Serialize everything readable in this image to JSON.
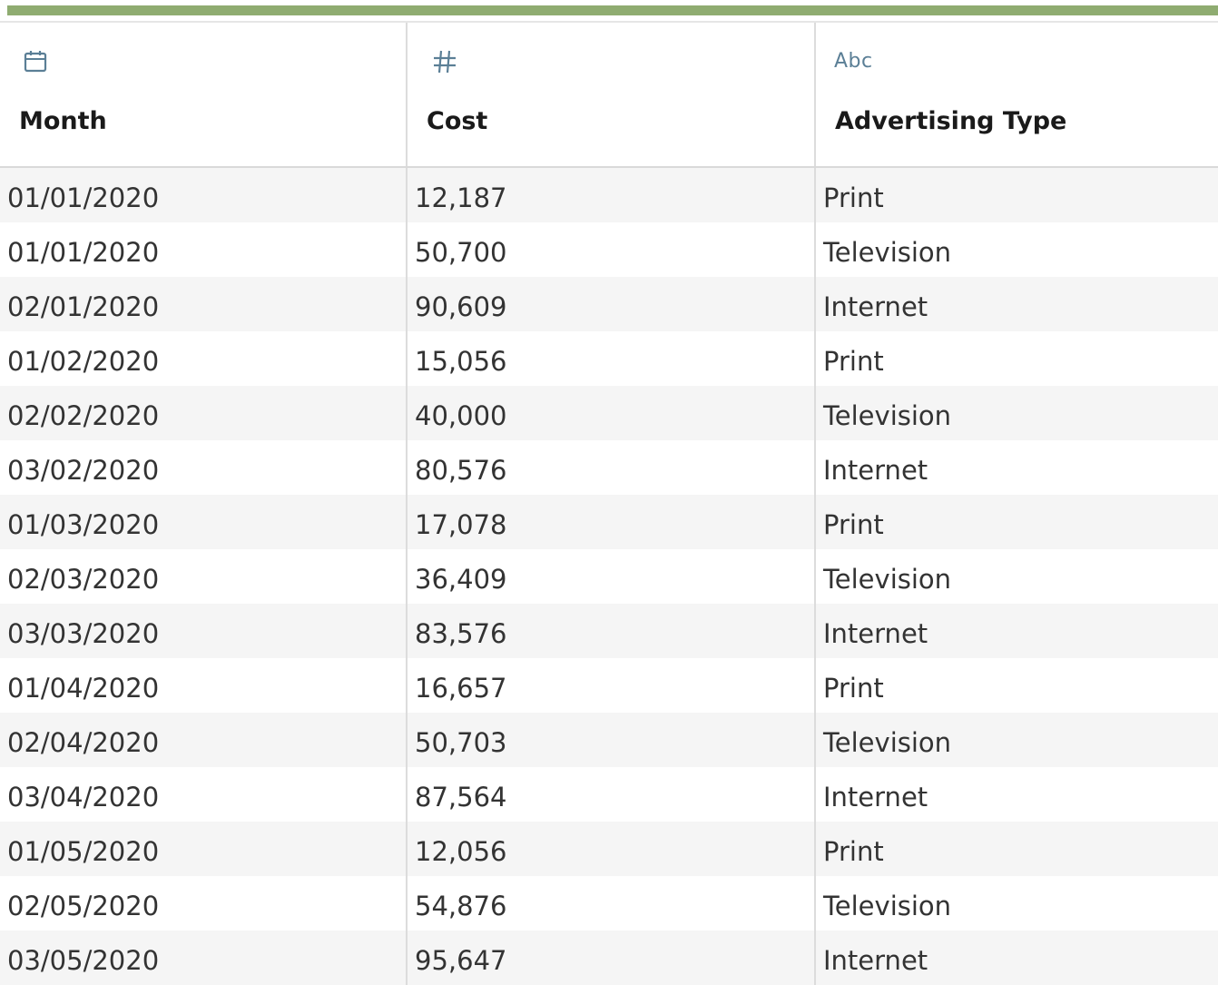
{
  "colors": {
    "accent_bar": "#8fac71",
    "icon": "#5b7f96",
    "row_alt": "#f5f5f5"
  },
  "columns": [
    {
      "name": "Month",
      "type_icon": "calendar-icon"
    },
    {
      "name": "Cost",
      "type_icon": "number-hash-icon"
    },
    {
      "name": "Advertising Type",
      "type_icon": "abc-string-icon",
      "type_label": "Abc"
    }
  ],
  "rows": [
    [
      "01/01/2020",
      "12,187",
      "Print"
    ],
    [
      "01/01/2020",
      "50,700",
      "Television"
    ],
    [
      "02/01/2020",
      "90,609",
      "Internet"
    ],
    [
      "01/02/2020",
      "15,056",
      "Print"
    ],
    [
      "02/02/2020",
      "40,000",
      "Television"
    ],
    [
      "03/02/2020",
      "80,576",
      "Internet"
    ],
    [
      "01/03/2020",
      "17,078",
      "Print"
    ],
    [
      "02/03/2020",
      "36,409",
      "Television"
    ],
    [
      "03/03/2020",
      "83,576",
      "Internet"
    ],
    [
      "01/04/2020",
      "16,657",
      "Print"
    ],
    [
      "02/04/2020",
      "50,703",
      "Television"
    ],
    [
      "03/04/2020",
      "87,564",
      "Internet"
    ],
    [
      "01/05/2020",
      "12,056",
      "Print"
    ],
    [
      "02/05/2020",
      "54,876",
      "Television"
    ],
    [
      "03/05/2020",
      "95,647",
      "Internet"
    ]
  ]
}
